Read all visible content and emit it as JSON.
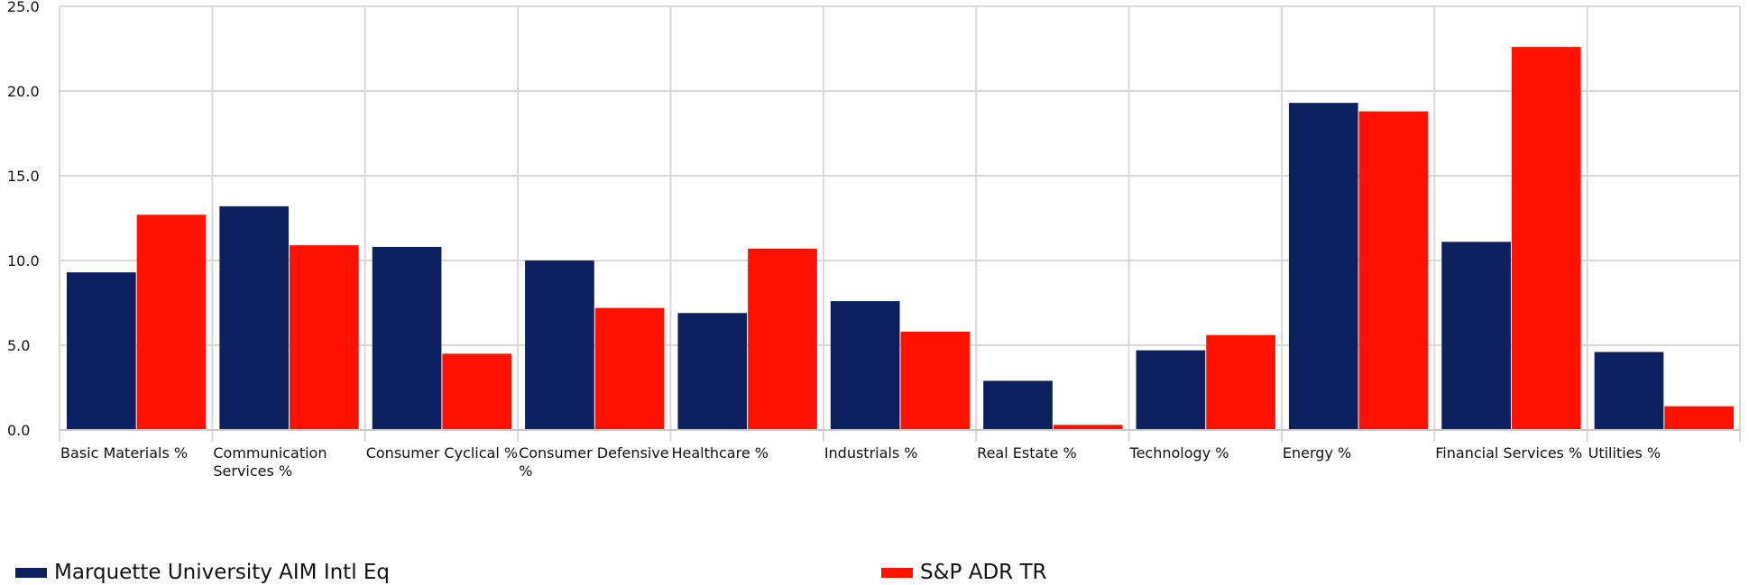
{
  "chart_data": {
    "type": "bar",
    "categories": [
      "Basic Materials %",
      "Communication Services %",
      "Consumer Cyclical %",
      "Consumer Defensive %",
      "Healthcare %",
      "Industrials %",
      "Real Estate %",
      "Technology %",
      "Energy %",
      "Financial Services %",
      "Utilities %"
    ],
    "category_label_lines": [
      [
        "Basic Materials %"
      ],
      [
        "Communication",
        "Services %"
      ],
      [
        "Consumer Cyclical %"
      ],
      [
        "Consumer Defensive",
        "%"
      ],
      [
        "Healthcare %"
      ],
      [
        "Industrials %"
      ],
      [
        "Real Estate %"
      ],
      [
        "Technology %"
      ],
      [
        "Energy %"
      ],
      [
        "Financial Services %"
      ],
      [
        "Utilities %"
      ]
    ],
    "series": [
      {
        "name": "Marquette University AIM Intl Eq",
        "color": "#0c1f5e",
        "values": [
          9.3,
          13.2,
          10.8,
          10.0,
          6.9,
          7.6,
          2.9,
          4.7,
          19.3,
          11.1,
          4.6
        ]
      },
      {
        "name": "S&P ADR TR",
        "color": "#ff1100",
        "values": [
          12.7,
          10.9,
          4.5,
          7.2,
          10.7,
          5.8,
          0.3,
          5.6,
          18.8,
          22.6,
          1.4
        ]
      }
    ],
    "ylim": [
      0,
      25
    ],
    "y_ticks": [
      "0.0",
      "5.0",
      "10.0",
      "15.0",
      "20.0",
      "25.0"
    ],
    "grid": true,
    "legend_position": "bottom"
  }
}
